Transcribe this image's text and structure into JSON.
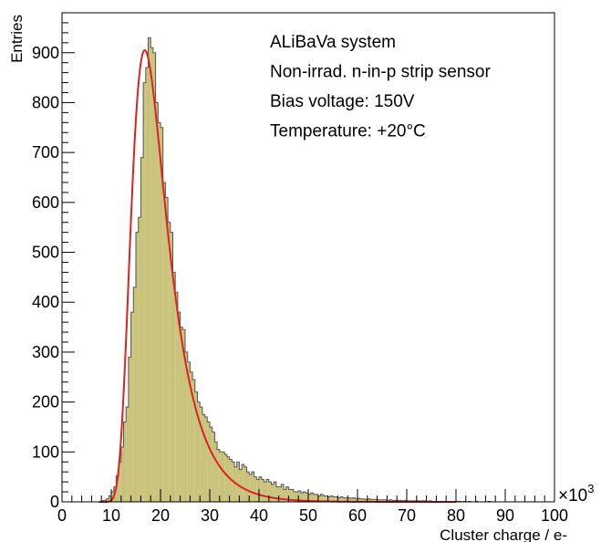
{
  "chart_data": {
    "type": "histogram",
    "xlabel": "Cluster charge / e-",
    "ylabel": "Entries",
    "x_multiplier_label": "×10",
    "x_multiplier_exp": "3",
    "xlim": [
      0,
      100
    ],
    "ylim": [
      0,
      980
    ],
    "xticks": [
      0,
      10,
      20,
      30,
      40,
      50,
      60,
      70,
      80,
      90,
      100
    ],
    "yticks": [
      0,
      100,
      200,
      300,
      400,
      500,
      600,
      700,
      800,
      900
    ],
    "annotations": [
      "ALiBaVa system",
      "Non-irrad. n-in-p strip sensor",
      "Bias voltage: 150V",
      "Temperature: +20°C"
    ],
    "colors": {
      "fill": "#c8c27a",
      "outline": "#555555",
      "fit": "#dd2222"
    },
    "histogram": {
      "bin_width": 0.5,
      "x_start": 5,
      "counts": [
        0,
        0,
        0,
        0,
        0,
        0,
        2,
        3,
        6,
        12,
        20,
        30,
        52,
        80,
        110,
        160,
        190,
        290,
        380,
        430,
        540,
        570,
        690,
        840,
        870,
        930,
        910,
        900,
        800,
        760,
        750,
        640,
        610,
        560,
        540,
        460,
        420,
        380,
        350,
        345,
        300,
        280,
        260,
        245,
        220,
        200,
        190,
        175,
        170,
        160,
        150,
        140,
        120,
        105,
        100,
        100,
        95,
        90,
        85,
        80,
        70,
        80,
        65,
        75,
        70,
        60,
        55,
        60,
        50,
        45,
        50,
        45,
        40,
        45,
        40,
        35,
        40,
        30,
        30,
        35,
        25,
        30,
        25,
        25,
        20,
        20,
        22,
        18,
        20,
        18,
        15,
        18,
        15,
        15,
        12,
        15,
        12,
        12,
        10,
        12,
        10,
        10,
        8,
        10,
        8,
        8,
        8,
        7,
        8,
        6,
        7,
        6,
        6,
        5,
        6,
        5,
        5,
        5,
        4,
        4,
        4,
        4,
        3,
        4,
        3,
        3,
        3,
        3,
        2,
        3,
        2,
        2,
        2,
        2,
        2,
        2,
        2,
        2,
        1,
        2,
        1,
        1,
        1,
        1,
        1,
        1,
        1,
        1,
        1,
        1,
        1,
        1,
        0,
        1,
        0,
        1,
        0,
        0,
        1,
        0,
        0,
        0,
        0,
        1,
        0,
        0,
        0,
        0,
        0,
        0,
        0,
        0,
        0,
        0,
        0,
        0,
        0,
        0,
        0,
        0,
        0,
        0,
        0
      ]
    },
    "fit": {
      "model": "landau-gauss",
      "mpv": 16.8,
      "peak": 905,
      "width": 2.5,
      "tail": 0.012
    }
  }
}
